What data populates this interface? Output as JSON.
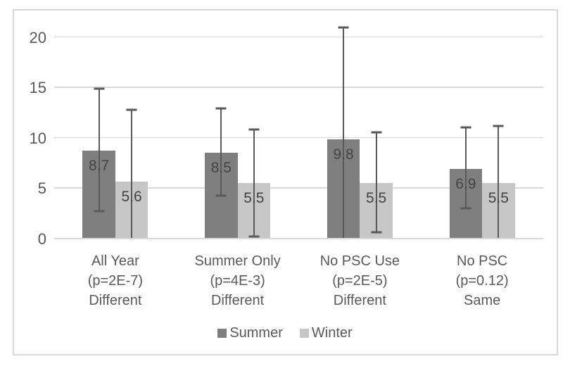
{
  "chart_data": {
    "type": "bar",
    "title": "",
    "xlabel": "",
    "ylabel": "",
    "categories": [
      {
        "label": "All Year (p=2E-7) Different",
        "lines": [
          "All Year",
          "(p=2E-7)",
          "Different"
        ]
      },
      {
        "label": "Summer Only (p=4E-3) Different",
        "lines": [
          "Summer Only",
          "(p=4E-3)",
          "Different"
        ]
      },
      {
        "label": "No PSC Use (p=2E-5) Different",
        "lines": [
          "No PSC Use",
          "(p=2E-5)",
          "Different"
        ]
      },
      {
        "label": "No PSC (p=0.12) Same",
        "lines": [
          "No PSC",
          "(p=0.12)",
          "Same"
        ]
      }
    ],
    "series": [
      {
        "name": "Summer",
        "color": "#7f7f7f",
        "values": [
          8.7,
          8.5,
          9.8,
          6.9
        ],
        "data_labels": [
          "8.7",
          "8.5",
          "9.8",
          "6.9"
        ],
        "error_upper": [
          14.9,
          13.0,
          21.0,
          11.1
        ],
        "error_lower": [
          2.7,
          4.2,
          -1.4,
          3.0
        ]
      },
      {
        "name": "Winter",
        "color": "#c6c6c6",
        "values": [
          5.6,
          5.5,
          5.5,
          5.5
        ],
        "data_labels": [
          "5.6",
          "5.5",
          "5.5",
          "5.5"
        ],
        "error_upper": [
          12.8,
          10.9,
          10.6,
          11.2
        ],
        "error_lower": [
          -1.6,
          0.2,
          0.6,
          -0.2
        ]
      }
    ],
    "y_axis": {
      "min": 0,
      "max": 20,
      "tick_interval": 5,
      "ticks": [
        0,
        5,
        10,
        15,
        20
      ]
    },
    "legend": {
      "position": "bottom",
      "entries": [
        "Summer",
        "Winter"
      ]
    },
    "grid": true,
    "error_bar_color": "#595959"
  },
  "colors": {
    "background": "#ffffff",
    "frame_border": "#d8d8d8",
    "gridline": "#d9d9d9",
    "axis_text": "#595959",
    "data_label_text": "#434343",
    "category_text": "#595959",
    "legend_text": "#595959"
  }
}
